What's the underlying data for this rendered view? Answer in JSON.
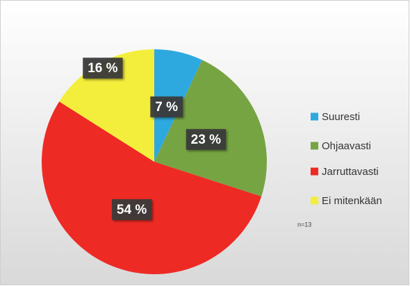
{
  "chart_data": {
    "type": "pie",
    "categories": [
      "Suuresti",
      "Ohjaavasti",
      "Jarruttavasti",
      "Ei mitenkään"
    ],
    "values": [
      7,
      23,
      54,
      16
    ],
    "value_labels": [
      "7 %",
      "23 %",
      "54 %",
      "16 %"
    ],
    "colors": [
      "#2ea9df",
      "#77a443",
      "#ee2a24",
      "#f3ee3b"
    ],
    "annotation": "n=13",
    "legend": "right"
  }
}
